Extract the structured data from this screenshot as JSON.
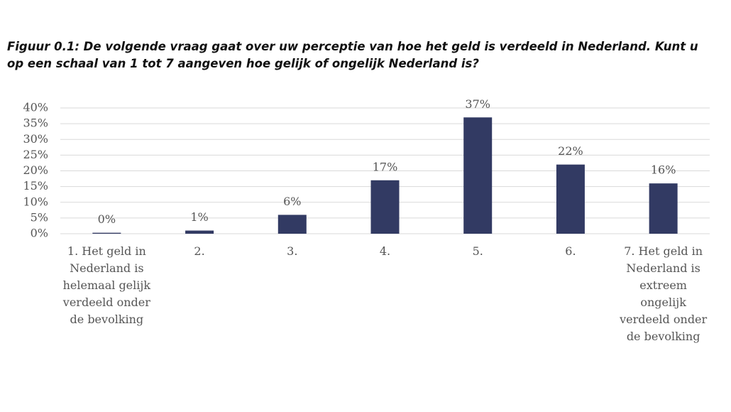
{
  "chart_data": {
    "type": "bar",
    "title": "Figuur 0.1: De volgende vraag gaat over uw perceptie van hoe het geld is verdeeld in Nederland. Kunt u op een schaal van 1 tot 7 aangeven hoe gelijk of ongelijk Nederland is?",
    "categories": [
      "1. Het geld in Nederland is helemaal gelijk verdeeld onder de bevolking",
      "2.",
      "3.",
      "4.",
      "5.",
      "6.",
      "7. Het geld in Nederland is extreem ongelijk verdeeld onder de bevolking"
    ],
    "values": [
      0.3,
      1,
      6,
      17,
      37,
      22,
      16
    ],
    "value_labels": [
      "0%",
      "1%",
      "6%",
      "17%",
      "37%",
      "22%",
      "16%"
    ],
    "color": "#323a63",
    "ylim": [
      0,
      40
    ],
    "yticks": [
      {
        "value": 0,
        "label": "0%"
      },
      {
        "value": 5,
        "label": "5%"
      },
      {
        "value": 10,
        "label": "10%"
      },
      {
        "value": 15,
        "label": "15%"
      },
      {
        "value": 20,
        "label": "20%"
      },
      {
        "value": 25,
        "label": "25%"
      },
      {
        "value": 30,
        "label": "30%"
      },
      {
        "value": 35,
        "label": "35%"
      },
      {
        "value": 40,
        "label": "40%"
      }
    ],
    "grid": true
  }
}
